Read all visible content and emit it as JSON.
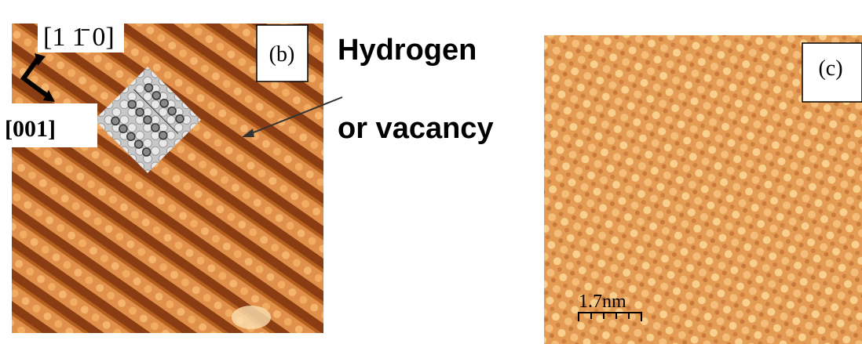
{
  "panel_b": {
    "direction_1": "[1 1̄ 0]",
    "direction_2": "[001]",
    "label": "(b)"
  },
  "annotation": {
    "line_1": "Hydrogen",
    "line_2": "or vacancy"
  },
  "panel_c": {
    "label": "(c)",
    "scale_bar": "1.7nm"
  }
}
